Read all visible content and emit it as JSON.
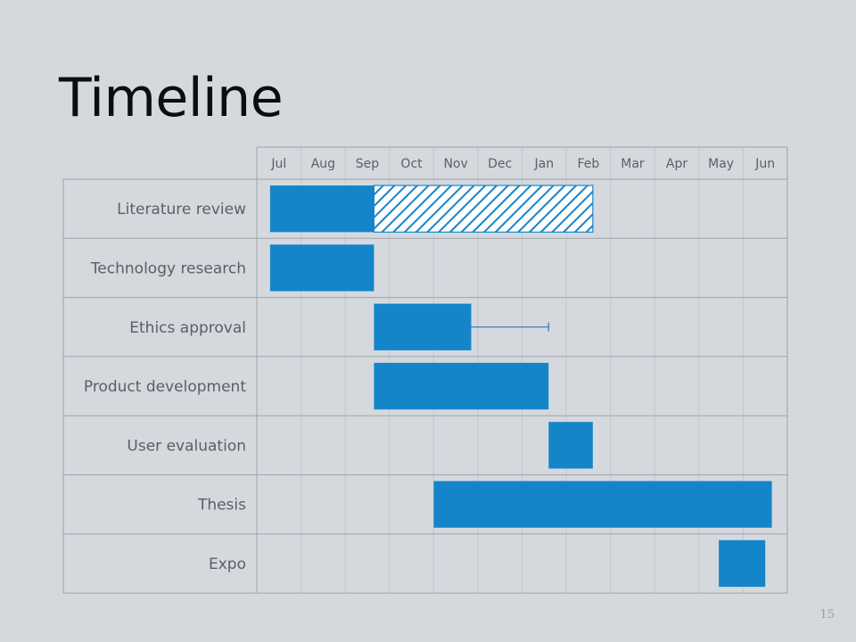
{
  "slide": {
    "title": "Timeline",
    "page_number": "15"
  },
  "colors": {
    "background": "#d5d9de",
    "bar": "#1585c9",
    "grid_line": "#c3c8ce",
    "frame": "#9ea4ab",
    "label_text": "#5a5f66"
  },
  "chart_data": {
    "type": "gantt",
    "title": "",
    "months": [
      "Jul",
      "Aug",
      "Sep",
      "Oct",
      "Nov",
      "Dec",
      "Jan",
      "Feb",
      "Mar",
      "Apr",
      "May",
      "Jun"
    ],
    "tasks": [
      {
        "name": "Literature review",
        "segments": [
          {
            "start": 0.3,
            "end": 2.65,
            "style": "solid"
          },
          {
            "start": 2.65,
            "end": 7.6,
            "style": "hatched"
          }
        ]
      },
      {
        "name": "Technology research",
        "segments": [
          {
            "start": 0.3,
            "end": 2.65,
            "style": "solid"
          }
        ]
      },
      {
        "name": "Ethics approval",
        "segments": [
          {
            "start": 2.65,
            "end": 4.85,
            "style": "solid"
          }
        ],
        "whisker_end": 6.6
      },
      {
        "name": "Product development",
        "segments": [
          {
            "start": 2.65,
            "end": 6.6,
            "style": "solid"
          }
        ]
      },
      {
        "name": "User evaluation",
        "segments": [
          {
            "start": 6.6,
            "end": 7.6,
            "style": "solid"
          }
        ]
      },
      {
        "name": "Thesis",
        "segments": [
          {
            "start": 4.0,
            "end": 11.65,
            "style": "solid"
          }
        ]
      },
      {
        "name": "Expo",
        "segments": [
          {
            "start": 10.45,
            "end": 11.5,
            "style": "solid"
          }
        ]
      }
    ]
  }
}
